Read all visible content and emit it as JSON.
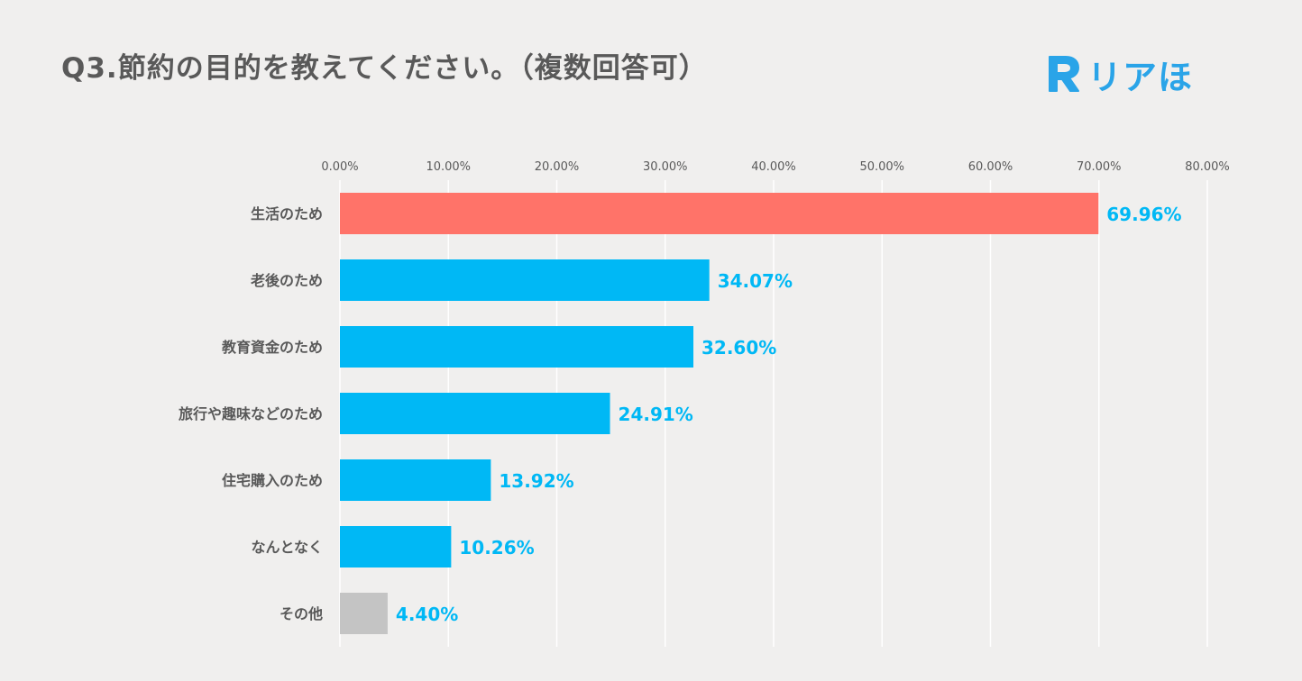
{
  "header": {
    "title": "Q3.節約の目的を教えてください。（複数回答可）",
    "logo_text": "リアほ",
    "logo_icon": "r-logo-icon"
  },
  "colors": {
    "background": "#f0efee",
    "highlight": "#ff7369",
    "primary": "#00b8f5",
    "other": "#c4c4c4",
    "value_label": "#00b8f5",
    "logo": "#2aa4e8",
    "text": "#595959",
    "grid": "#ffffff"
  },
  "chart_data": {
    "type": "bar",
    "orientation": "horizontal",
    "title": "Q3.節約の目的を教えてください。（複数回答可）",
    "categories": [
      "生活のため",
      "老後のため",
      "教育資金のため",
      "旅行や趣味などのため",
      "住宅購入のため",
      "なんとなく",
      "その他"
    ],
    "values": [
      69.96,
      34.07,
      32.6,
      24.91,
      13.92,
      10.26,
      4.4
    ],
    "value_labels": [
      "69.96%",
      "34.07%",
      "32.60%",
      "24.91%",
      "13.92%",
      "10.26%",
      "4.40%"
    ],
    "bar_colors": [
      "#ff7369",
      "#00b8f5",
      "#00b8f5",
      "#00b8f5",
      "#00b8f5",
      "#00b8f5",
      "#c4c4c4"
    ],
    "xlim": [
      0,
      80
    ],
    "x_ticks": [
      0,
      10,
      20,
      30,
      40,
      50,
      60,
      70,
      80
    ],
    "x_tick_labels": [
      "0.00%",
      "10.00%",
      "20.00%",
      "30.00%",
      "40.00%",
      "50.00%",
      "60.00%",
      "70.00%",
      "80.00%"
    ],
    "axis_position": "top",
    "grid": true,
    "legend": "none"
  }
}
